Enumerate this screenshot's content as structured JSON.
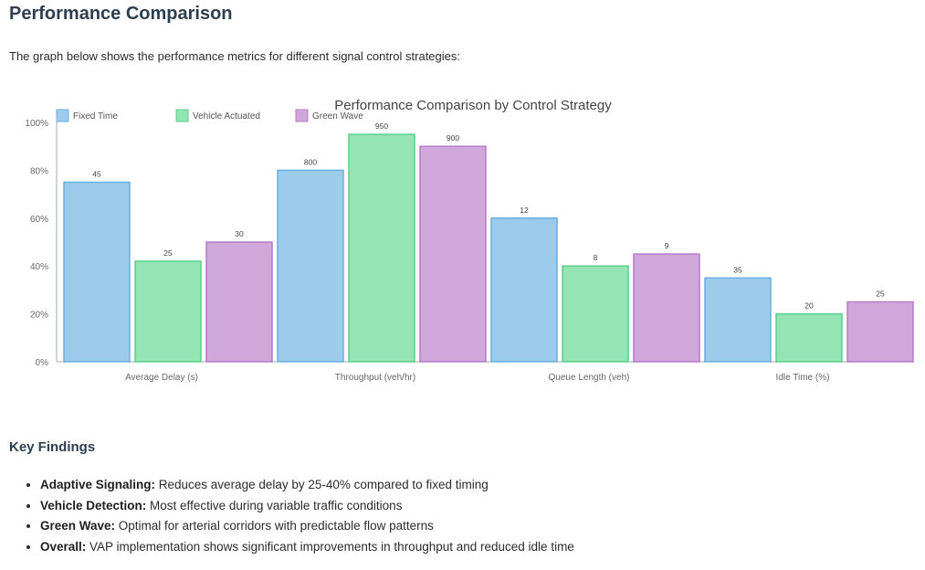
{
  "page": {
    "title": "Performance Comparison",
    "intro": "The graph below shows the performance metrics for different signal control strategies:"
  },
  "chart_data": {
    "type": "bar",
    "title": "Performance Comparison by Control Strategy",
    "categories": [
      "Average Delay (s)",
      "Throughput (veh/hr)",
      "Queue Length (veh)",
      "Idle Time (%)"
    ],
    "ylim": [
      0,
      100
    ],
    "yticks": [
      "0%",
      "20%",
      "40%",
      "60%",
      "80%",
      "100%"
    ],
    "grid": false,
    "legend_position": "top-left",
    "series": [
      {
        "name": "Fixed Time",
        "color": "#9ccbec",
        "stroke": "#6aaee0",
        "values": [
          75,
          80,
          60,
          35
        ],
        "labels": [
          "45",
          "800",
          "12",
          "35"
        ]
      },
      {
        "name": "Vehicle Actuated",
        "color": "#95e4b3",
        "stroke": "#5ccf8b",
        "values": [
          42,
          95,
          40,
          20
        ],
        "labels": [
          "25",
          "950",
          "8",
          "20"
        ]
      },
      {
        "name": "Green Wave",
        "color": "#cfa8d9",
        "stroke": "#b47dc6",
        "values": [
          50,
          90,
          45,
          25
        ],
        "labels": [
          "30",
          "900",
          "9",
          "25"
        ]
      }
    ]
  },
  "findings": {
    "title": "Key Findings",
    "items": [
      {
        "label": "Adaptive Signaling:",
        "text": " Reduces average delay by 25-40% compared to fixed timing"
      },
      {
        "label": "Vehicle Detection:",
        "text": " Most effective during variable traffic conditions"
      },
      {
        "label": "Green Wave:",
        "text": " Optimal for arterial corridors with predictable flow patterns"
      },
      {
        "label": "Overall:",
        "text": " VAP implementation shows significant improvements in throughput and reduced idle time"
      }
    ]
  }
}
